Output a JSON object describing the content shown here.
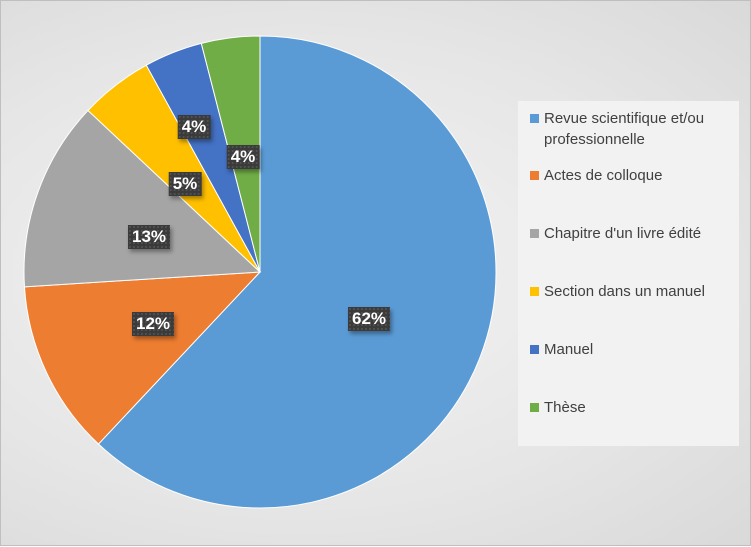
{
  "chart_data": {
    "type": "pie",
    "title": "",
    "categories": [
      "Revue scientifique et/ou professionnelle",
      "Actes de colloque",
      "Chapitre d'un livre édité",
      "Section dans un manuel",
      "Manuel",
      "Thèse"
    ],
    "values": [
      62,
      12,
      13,
      5,
      4,
      4
    ],
    "data_labels": [
      "62%",
      "12%",
      "13%",
      "5%",
      "4%",
      "4%"
    ],
    "colors": [
      "#5b9bd5",
      "#ed7d31",
      "#a5a5a5",
      "#ffc000",
      "#4472c4",
      "#70ad47"
    ],
    "legend_position": "right",
    "start_angle": "12 o'clock",
    "direction": "clockwise"
  }
}
